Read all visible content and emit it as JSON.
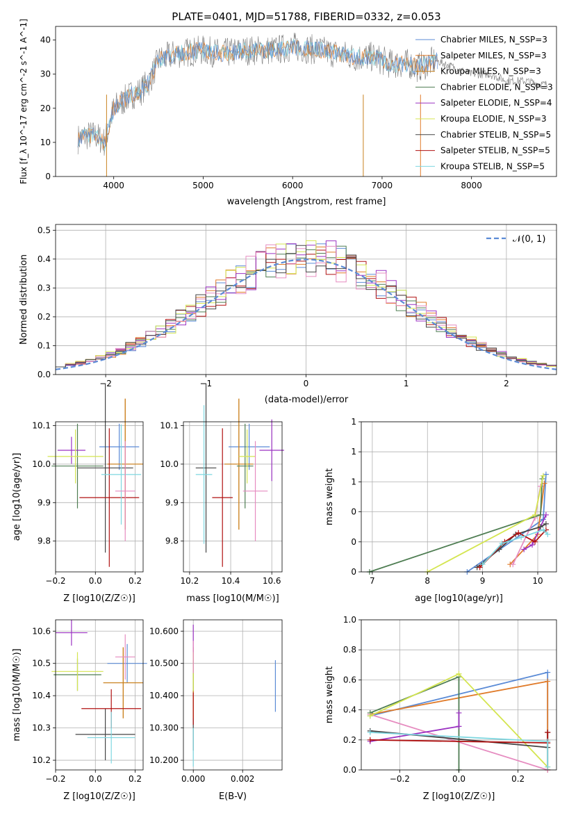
{
  "figure": {
    "title": "PLATE=0401, MJD=51788, FIBERID=0332, z=0.053"
  },
  "colors": {
    "models": [
      "#5b8bd6",
      "#e07b2a",
      "#c8821e",
      "#4e7d52",
      "#9b32c2",
      "#d4e550",
      "#444444",
      "#b01010",
      "#7ed7e0"
    ]
  },
  "chart_data": [
    {
      "type": "line",
      "name": "spectrum",
      "title": "PLATE=0401, MJD=51788, FIBERID=0332, z=0.053",
      "xlabel": "wavelength [Angstrom, rest frame]",
      "ylabel": "Flux [f_λ 10^-17 erg cm^-2 s^-1 A^-1]",
      "xlim": [
        3350,
        8950
      ],
      "ylim": [
        0,
        44
      ],
      "xticks": [
        4000,
        5000,
        6000,
        7000,
        8000
      ],
      "yticks": [
        0,
        10,
        20,
        30,
        40
      ],
      "grid": false,
      "legend_position": "top-right",
      "series": [
        {
          "name": "Chabrier MILES, N_SSP=3"
        },
        {
          "name": "Salpeter MILES, N_SSP=3"
        },
        {
          "name": "Kroupa MILES, N_SSP=3"
        },
        {
          "name": "Chabrier ELODIE, N_SSP=3"
        },
        {
          "name": "Salpeter ELODIE, N_SSP=4"
        },
        {
          "name": "Kroupa ELODIE, N_SSP=3"
        },
        {
          "name": "Chabrier STELIB, N_SSP=5"
        },
        {
          "name": "Salpeter STELIB, N_SSP=5"
        },
        {
          "name": "Kroupa STELIB, N_SSP=5"
        }
      ],
      "continuum": {
        "x": [
          3600,
          3700,
          3800,
          3900,
          3950,
          4000,
          4100,
          4200,
          4300,
          4400,
          4500,
          4700,
          5000,
          5200,
          5500,
          5800,
          6000,
          6300,
          6500,
          6700,
          6900,
          7100,
          7300,
          7400,
          7600,
          7800,
          8000,
          8200,
          8400,
          8600,
          8800
        ],
        "y": [
          11,
          12,
          12,
          10,
          15,
          20,
          22,
          24,
          25,
          28,
          34,
          36,
          37,
          36,
          37,
          37,
          38,
          37,
          36,
          35,
          35,
          33,
          33,
          32,
          34,
          32,
          30,
          30,
          28,
          28,
          27
        ]
      }
    },
    {
      "type": "bar",
      "name": "residual-histogram",
      "xlabel": "(data-model)/error",
      "ylabel": "Normed distribution",
      "xlim": [
        -2.5,
        2.5
      ],
      "ylim": [
        0,
        0.52
      ],
      "xticks": [
        -2,
        -1,
        0,
        1,
        2
      ],
      "yticks": [
        0.0,
        0.1,
        0.2,
        0.3,
        0.4,
        0.5
      ],
      "grid": true,
      "legend": "N(0,1)",
      "legend_position": "top-right"
    },
    {
      "type": "scatter",
      "name": "age-vs-Z",
      "xlabel": "Z [log10(Z/Z☉)]",
      "ylabel": "age  [log10(age/yr)]",
      "xlim": [
        -0.2,
        0.24
      ],
      "ylim": [
        9.72,
        10.11
      ],
      "xticks": [
        -0.2,
        0.0,
        0.2
      ],
      "yticks": [
        9.8,
        9.9,
        10.0,
        10.1
      ],
      "points": [
        {
          "x": 0.12,
          "y": 10.045,
          "xerr": 0.1,
          "yerr": 0.06
        },
        {
          "x": 0.15,
          "y": 10.0,
          "xerr": 0.09,
          "yerr": 0.17
        },
        {
          "x": 0.15,
          "y": 10.0,
          "xerr": 0.09,
          "yerr": 0.17
        },
        {
          "x": -0.09,
          "y": 9.995,
          "xerr": 0.13,
          "yerr": 0.11
        },
        {
          "x": -0.12,
          "y": 10.036,
          "xerr": 0.07,
          "yerr": 0.035
        },
        {
          "x": -0.1,
          "y": 10.02,
          "xerr": 0.14,
          "yerr": 0.07
        },
        {
          "x": 0.05,
          "y": 9.99,
          "xerr": 0.14,
          "yerr": 0.22
        },
        {
          "x": 0.07,
          "y": 9.913,
          "xerr": 0.15,
          "yerr": 0.18
        },
        {
          "x": 0.13,
          "y": 9.973,
          "xerr": 0.1,
          "yerr": 0.13
        },
        {
          "x": 0.15,
          "y": 9.93,
          "xerr": 0.05,
          "yerr": 0.13
        }
      ]
    },
    {
      "type": "scatter",
      "name": "age-vs-mass",
      "xlabel": "mass [log10(M/M☉)]",
      "ylabel": "",
      "xlim": [
        10.17,
        10.65
      ],
      "ylim": [
        9.72,
        10.11
      ],
      "xticks": [
        10.2,
        10.4,
        10.6
      ],
      "yticks": [
        9.8,
        9.9,
        10.0,
        10.1
      ],
      "points": [
        {
          "x": 10.49,
          "y": 10.045,
          "xerr": 0.1,
          "yerr": 0.06
        },
        {
          "x": 10.44,
          "y": 10.0,
          "xerr": 0.07,
          "yerr": 0.17
        },
        {
          "x": 10.44,
          "y": 10.0,
          "xerr": 0.07,
          "yerr": 0.17
        },
        {
          "x": 10.47,
          "y": 9.995,
          "xerr": 0.04,
          "yerr": 0.11
        },
        {
          "x": 10.6,
          "y": 10.036,
          "xerr": 0.06,
          "yerr": 0.08
        },
        {
          "x": 10.48,
          "y": 10.02,
          "xerr": 0.04,
          "yerr": 0.07
        },
        {
          "x": 10.28,
          "y": 9.99,
          "xerr": 0.05,
          "yerr": 0.22
        },
        {
          "x": 10.36,
          "y": 9.913,
          "xerr": 0.05,
          "yerr": 0.18
        },
        {
          "x": 10.27,
          "y": 9.973,
          "xerr": 0.04,
          "yerr": 0.18
        },
        {
          "x": 10.52,
          "y": 9.93,
          "xerr": 0.06,
          "yerr": 0.13
        }
      ]
    },
    {
      "type": "line",
      "name": "massweight-vs-age",
      "xlabel": "age  [log10(age/yr)]",
      "ylabel": "mass weight",
      "xlim": [
        6.8,
        10.34
      ],
      "ylim": [
        0,
        1
      ],
      "xticks": [
        7,
        8,
        9,
        10
      ],
      "yticks": [
        0.0,
        0.2,
        0.4,
        0.6,
        0.8,
        1.0
      ],
      "series": [
        {
          "x": [
            8.72,
            10.1,
            10.15
          ],
          "y": [
            0.0,
            0.35,
            0.65
          ]
        },
        {
          "x": [
            9.5,
            10.0,
            10.12
          ],
          "y": [
            0.05,
            0.25,
            0.59
          ]
        },
        {
          "x": [
            9.55,
            9.95,
            10.05
          ],
          "y": [
            0.05,
            0.36,
            0.57
          ]
        },
        {
          "x": [
            6.95,
            10.05,
            10.08
          ],
          "y": [
            0.0,
            0.38,
            0.62
          ]
        },
        {
          "x": [
            9.75,
            9.9,
            10.15
          ],
          "y": [
            0.15,
            0.18,
            0.38
          ]
        },
        {
          "x": [
            8.0,
            9.95,
            10.1
          ],
          "y": [
            0.0,
            0.38,
            0.64
          ]
        },
        {
          "x": [
            8.9,
            9.3,
            9.6,
            10.05,
            10.15
          ],
          "y": [
            0.03,
            0.15,
            0.25,
            0.3,
            0.32
          ]
        },
        {
          "x": [
            8.95,
            9.4,
            9.65,
            9.95,
            10.15
          ],
          "y": [
            0.03,
            0.2,
            0.26,
            0.2,
            0.28
          ]
        },
        {
          "x": [
            9.0,
            9.35,
            9.7,
            10.1,
            10.18
          ],
          "y": [
            0.05,
            0.19,
            0.23,
            0.28,
            0.25
          ]
        }
      ]
    },
    {
      "type": "scatter",
      "name": "mass-vs-Z",
      "xlabel": "Z [log10(Z/Z☉)]",
      "ylabel": "mass [log10(M/M☉)]",
      "xlim": [
        -0.2,
        0.24
      ],
      "ylim": [
        10.17,
        10.635
      ],
      "xticks": [
        -0.2,
        0.0,
        0.2
      ],
      "yticks": [
        10.2,
        10.3,
        10.4,
        10.5,
        10.6
      ],
      "points": [
        {
          "x": 0.16,
          "y": 10.5,
          "xerr": 0.1,
          "yerr": 0.06
        },
        {
          "x": 0.14,
          "y": 10.44,
          "xerr": 0.1,
          "yerr": 0.11
        },
        {
          "x": 0.14,
          "y": 10.44,
          "xerr": 0.1,
          "yerr": 0.11
        },
        {
          "x": -0.09,
          "y": 10.465,
          "xerr": 0.12,
          "yerr": 0.05
        },
        {
          "x": -0.12,
          "y": 10.595,
          "xerr": 0.08,
          "yerr": 0.04
        },
        {
          "x": -0.09,
          "y": 10.475,
          "xerr": 0.13,
          "yerr": 0.06
        },
        {
          "x": 0.05,
          "y": 10.28,
          "xerr": 0.15,
          "yerr": 0.08
        },
        {
          "x": 0.08,
          "y": 10.36,
          "xerr": 0.15,
          "yerr": 0.06
        },
        {
          "x": 0.08,
          "y": 10.27,
          "xerr": 0.12,
          "yerr": 0.08
        },
        {
          "x": 0.15,
          "y": 10.52,
          "xerr": 0.05,
          "yerr": 0.07
        }
      ]
    },
    {
      "type": "scatter",
      "name": "mass-vs-EBV",
      "xlabel": "E(B-V)",
      "ylabel": "",
      "xlim": [
        -0.0004,
        0.0036
      ],
      "ylim": [
        10.17,
        10.635
      ],
      "xticks": [
        0.0,
        0.002
      ],
      "yticks": [
        10.2,
        10.3,
        10.4,
        10.5,
        10.6
      ],
      "points": [
        {
          "x": 0.00333,
          "y": 10.43,
          "yerr": 0.08
        },
        {
          "x": 0.0,
          "y": 10.44,
          "yerr": 0.11
        },
        {
          "x": 0.0,
          "y": 10.44,
          "yerr": 0.11
        },
        {
          "x": 0.0,
          "y": 10.465,
          "yerr": 0.05
        },
        {
          "x": 0.0,
          "y": 10.55,
          "yerr": 0.07
        },
        {
          "x": 0.0,
          "y": 10.475,
          "yerr": 0.06
        },
        {
          "x": 0.0,
          "y": 10.28,
          "yerr": 0.05
        },
        {
          "x": 0.0,
          "y": 10.36,
          "yerr": 0.05
        },
        {
          "x": 0.0,
          "y": 10.24,
          "yerr": 0.06
        },
        {
          "x": 0.0,
          "y": 10.52,
          "yerr": 0.05
        }
      ]
    },
    {
      "type": "line",
      "name": "massweight-vs-Z",
      "xlabel": "Z [log10(Z/Z☉)]",
      "ylabel": "mass weight",
      "xlim": [
        -0.33,
        0.33
      ],
      "ylim": [
        0,
        1
      ],
      "xticks": [
        -0.2,
        0.0,
        0.2
      ],
      "yticks": [
        0.0,
        0.2,
        0.4,
        0.6,
        0.8,
        1.0
      ],
      "series": [
        {
          "x": [
            -0.3,
            0.3,
            0.3
          ],
          "y": [
            0.36,
            0.65,
            0.0
          ]
        },
        {
          "x": [
            -0.3,
            0.3,
            0.3
          ],
          "y": [
            0.37,
            0.59,
            0.0
          ]
        },
        {
          "x": [
            -0.3,
            0.3
          ],
          "y": [
            0.37,
            0.0
          ]
        },
        {
          "x": [
            -0.3,
            0.0,
            0.0
          ],
          "y": [
            0.38,
            0.62,
            0.0
          ]
        },
        {
          "x": [
            -0.3,
            0.0,
            0.0
          ],
          "y": [
            0.19,
            0.29,
            0.38
          ]
        },
        {
          "x": [
            -0.3,
            0.0,
            0.3
          ],
          "y": [
            0.36,
            0.64,
            0.02
          ]
        },
        {
          "x": [
            -0.3,
            0.3,
            0.3
          ],
          "y": [
            0.26,
            0.15,
            0.25
          ]
        },
        {
          "x": [
            -0.3,
            0.3,
            0.3
          ],
          "y": [
            0.2,
            0.18,
            0.25
          ]
        },
        {
          "x": [
            -0.3,
            0.3,
            0.3
          ],
          "y": [
            0.25,
            0.19,
            0.02
          ]
        }
      ]
    }
  ]
}
